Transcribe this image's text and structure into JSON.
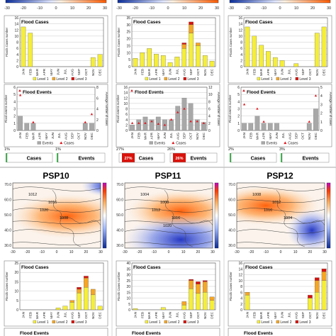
{
  "months": [
    "JAN",
    "FEB",
    "MAR",
    "APR",
    "MAY",
    "JUN",
    "JUL",
    "AUG",
    "SEP",
    "OCT",
    "NOV",
    "DEC"
  ],
  "legend": {
    "level1": "Level 1",
    "level2": "Level 2",
    "level3": "Level 3",
    "events": "Events",
    "cases": "Cases"
  },
  "colors": {
    "level1": "#f5ee3a",
    "level2": "#f5a623",
    "level3": "#d9120b",
    "events": "#a8a8a8",
    "cases_marker": "#e0141c",
    "low": "#2233cc",
    "high": "#ff6a1a"
  },
  "labels": {
    "flood_cases": "Flood Cases",
    "flood_events": "Flood   Events",
    "cases_axis": "Floods Cases number",
    "events_axis": "Flood events number",
    "avg_axis": "Average number of cases",
    "cases_box": "Cases",
    "events_box": "Events"
  },
  "top_colorbar_ticks": [
    "-30",
    "-20",
    "-10",
    "0",
    "10",
    "20",
    "30"
  ],
  "top_row": [
    {
      "id": "a",
      "cases": {
        "yticks": [
          "0",
          "2",
          "4",
          "6",
          "8",
          "10",
          "12",
          "14",
          "16"
        ],
        "l1": [
          13,
          11,
          0,
          0,
          0,
          0,
          0,
          0,
          0,
          0,
          3,
          4
        ],
        "l2": [
          0,
          0,
          0,
          0,
          0,
          0,
          0,
          0,
          0,
          0,
          0,
          0
        ],
        "l3": [
          0,
          0,
          0,
          0,
          0,
          0,
          0,
          0,
          0,
          0,
          0,
          0
        ]
      },
      "events": {
        "yticks": [
          "0",
          "1",
          "2",
          "3",
          "4",
          "5",
          "6"
        ],
        "y2ticks": [
          "0",
          "2",
          "4",
          "6",
          "8"
        ],
        "ev": [
          2,
          1,
          1,
          0,
          0,
          0,
          0,
          0,
          0,
          0,
          1,
          1
        ],
        "avg": [
          6.5,
          null,
          1.5,
          null,
          null,
          null,
          null,
          null,
          null,
          null,
          1.5,
          3
        ]
      },
      "case_pct": "1%",
      "event_pct": "1%"
    },
    {
      "id": "b",
      "cases": {
        "yticks": [
          "0",
          "5",
          "10",
          "15",
          "20",
          "25",
          "30",
          "35"
        ],
        "l1": [
          6,
          10,
          13,
          9,
          8,
          3,
          7,
          13,
          24,
          15,
          8,
          4
        ],
        "l2": [
          0,
          0,
          0,
          0,
          0,
          0,
          0,
          3,
          6,
          2,
          0,
          0
        ],
        "l3": [
          0,
          0,
          0,
          0,
          0,
          0,
          0,
          1,
          2,
          0,
          0,
          0
        ]
      },
      "events": {
        "yticks": [
          "0",
          "2",
          "4",
          "6",
          "8",
          "10",
          "12",
          "14",
          "16"
        ],
        "y2ticks": [
          "0",
          "2",
          "4",
          "6",
          "8",
          "10",
          "12"
        ],
        "ev": [
          2,
          4,
          5,
          4,
          5,
          4,
          4,
          9,
          12,
          10,
          4,
          3
        ],
        "avg": [
          2,
          2,
          2,
          2.5,
          1.8,
          1.5,
          3,
          5,
          6,
          2.5,
          2.5,
          2
        ]
      },
      "case_pct": "27%",
      "event_pct": "26%"
    },
    {
      "id": "c",
      "cases": {
        "yticks": [
          "0",
          "2",
          "4",
          "6",
          "8",
          "10",
          "12",
          "14",
          "16"
        ],
        "l1": [
          13,
          10,
          7,
          5,
          3,
          2,
          0,
          1,
          0,
          0,
          11,
          13
        ],
        "l2": [
          0,
          0,
          0,
          0,
          0,
          0,
          0,
          0,
          0,
          0,
          0,
          0
        ],
        "l3": [
          0,
          0,
          0,
          0,
          0,
          0,
          0,
          0,
          0,
          0,
          0,
          0
        ]
      },
      "events": {
        "yticks": [
          "0",
          "1",
          "2",
          "3",
          "4",
          "5",
          "6"
        ],
        "y2ticks": [
          "0",
          "1",
          "2",
          "3",
          "4",
          "5"
        ],
        "ev": [
          1,
          1,
          2,
          1,
          1,
          1,
          0,
          0,
          0,
          0,
          1,
          3
        ],
        "avg": [
          3,
          null,
          2.5,
          1,
          null,
          null,
          null,
          null,
          null,
          null,
          1,
          4
        ]
      },
      "case_pct": "2%",
      "event_pct": "3%"
    }
  ],
  "bottom_row": [
    {
      "title": "PSP10",
      "isobars": [
        "1012",
        "1016",
        "1020",
        "1008"
      ],
      "map_yticks": [
        "70.0",
        "60.0",
        "50.0",
        "40.0",
        "30.0"
      ],
      "map_xticks": [
        "-30",
        "-20",
        "-10",
        "0",
        "10",
        "20",
        "30"
      ],
      "cases": {
        "yticks": [
          "0",
          "5",
          "10",
          "15",
          "20",
          "25"
        ],
        "l1": [
          0,
          0,
          0,
          0,
          0,
          1,
          2,
          4,
          9,
          12,
          8,
          2
        ],
        "l2": [
          0,
          0,
          0,
          0,
          0,
          0,
          0,
          1,
          2,
          5,
          3,
          0
        ],
        "l3": [
          0,
          0,
          0,
          0,
          0,
          0,
          0,
          0,
          1,
          1,
          0,
          0
        ]
      }
    },
    {
      "title": "PSP11",
      "isobars": [
        "1004",
        "1008",
        "1012",
        "1016",
        "1020"
      ],
      "map_yticks": [
        "70.0",
        "60.0",
        "50.0",
        "40.0",
        "30.0"
      ],
      "map_xticks": [
        "-30",
        "-20",
        "-10",
        "0",
        "10",
        "20",
        "30"
      ],
      "cases": {
        "yticks": [
          "0",
          "5",
          "10",
          "15",
          "20",
          "25",
          "30",
          "35",
          "40"
        ],
        "l1": [
          1,
          0,
          0,
          0,
          2,
          0,
          0,
          4,
          18,
          14,
          15,
          8
        ],
        "l2": [
          0,
          0,
          0,
          0,
          0,
          0,
          0,
          3,
          7,
          8,
          9,
          3
        ],
        "l3": [
          0,
          0,
          0,
          0,
          0,
          0,
          0,
          0,
          1,
          2,
          1,
          0
        ]
      }
    },
    {
      "title": "PSP12",
      "isobars": [
        "1008",
        "1012",
        "1016",
        "1004"
      ],
      "map_yticks": [
        "70.0",
        "60.0",
        "50.0",
        "40.0",
        "30.0"
      ],
      "map_xticks": [
        "-30",
        "-20",
        "-10",
        "0",
        "10",
        "20",
        "30"
      ],
      "cases": {
        "yticks": [
          "0",
          "2",
          "4",
          "6",
          "8",
          "10",
          "12",
          "14",
          "16"
        ],
        "l1": [
          5,
          0,
          0,
          0,
          0,
          0,
          0,
          0,
          0,
          4,
          6,
          10
        ],
        "l2": [
          1,
          0,
          0,
          0,
          0,
          0,
          0,
          0,
          0,
          0,
          4,
          3
        ],
        "l3": [
          0,
          0,
          0,
          0,
          0,
          0,
          0,
          0,
          0,
          1,
          1,
          1
        ]
      }
    }
  ]
}
